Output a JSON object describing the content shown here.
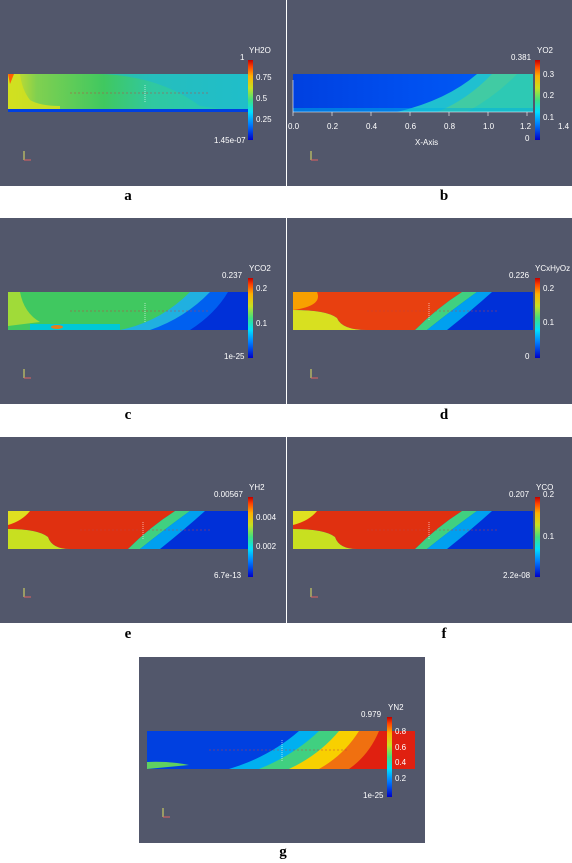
{
  "panels": [
    {
      "id": "a",
      "letter": "a",
      "colorbar": {
        "title": "YH2O",
        "max": "1",
        "min": "1.45e-07",
        "ticks": [
          "0.75",
          "0.5",
          "0.25"
        ]
      }
    },
    {
      "id": "b",
      "letter": "b",
      "colorbar": {
        "title": "YO2",
        "max": "0.381",
        "min": "0",
        "ticks": [
          "0.3",
          "0.2",
          "0.1"
        ]
      },
      "x_axis": {
        "label": "X-Axis",
        "ticks": [
          "0.0",
          "0.2",
          "0.4",
          "0.6",
          "0.8",
          "1.0",
          "1.2",
          "1.4"
        ]
      }
    },
    {
      "id": "c",
      "letter": "c",
      "colorbar": {
        "title": "YCO2",
        "max": "0.237",
        "min": "1e-25",
        "ticks": [
          "0.2",
          "0.1"
        ]
      }
    },
    {
      "id": "d",
      "letter": "d",
      "colorbar": {
        "title": "YCxHyOz",
        "max": "0.226",
        "min": "0",
        "ticks": [
          "0.2",
          "0.1"
        ]
      }
    },
    {
      "id": "e",
      "letter": "e",
      "colorbar": {
        "title": "YH2",
        "max": "0.00567",
        "min": "6.7e-13",
        "ticks": [
          "0.004",
          "0.002"
        ]
      }
    },
    {
      "id": "f",
      "letter": "f",
      "colorbar": {
        "title": "YCO",
        "max": "0.207",
        "min": "2.2e-08",
        "ticks": [
          "0.2",
          "0.1"
        ]
      }
    },
    {
      "id": "g",
      "letter": "g",
      "colorbar": {
        "title": "YN2",
        "max": "0.979",
        "min": "1e-25",
        "ticks": [
          "0.8",
          "0.6",
          "0.4",
          "0.2"
        ]
      }
    }
  ],
  "colors": {
    "background": "#52576b",
    "jet": [
      "#0000c8",
      "#0050ff",
      "#00c8ff",
      "#30e0a0",
      "#60d040",
      "#c8e020",
      "#ffd000",
      "#ff7000",
      "#e02000",
      "#b00000"
    ]
  }
}
